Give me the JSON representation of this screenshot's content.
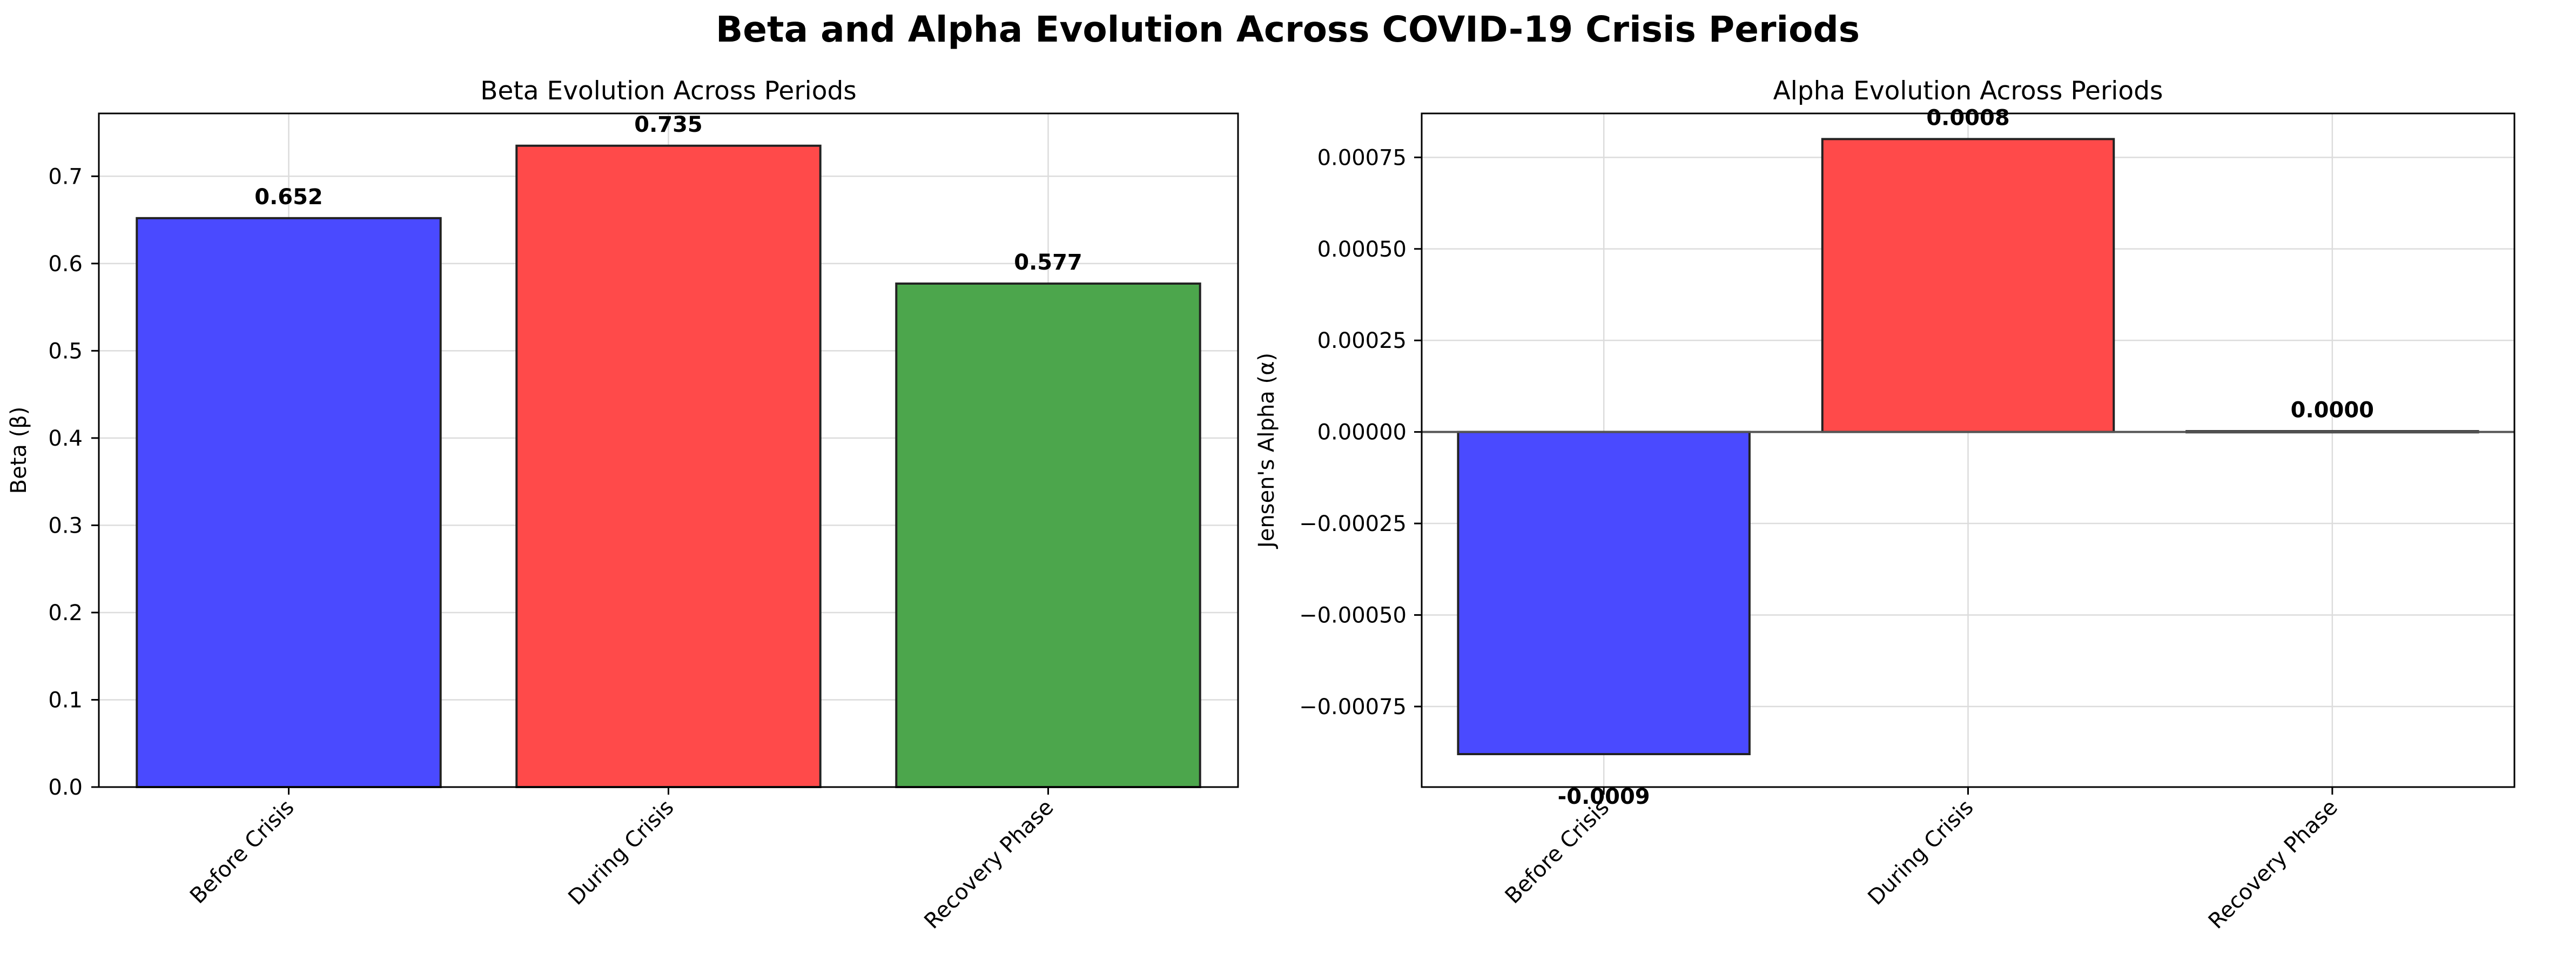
{
  "figure": {
    "suptitle": "Beta and Alpha Evolution Across COVID-19 Crisis Periods"
  },
  "chart_data": [
    {
      "type": "bar",
      "title": "Beta Evolution Across Periods",
      "xlabel": "",
      "ylabel": "Beta (β)",
      "categories": [
        "Before Crisis",
        "During Crisis",
        "Recovery Phase"
      ],
      "values": [
        0.652,
        0.735,
        0.577
      ],
      "value_labels": [
        "0.652",
        "0.735",
        "0.577"
      ],
      "bar_colors": [
        "#4a4aff",
        "#ff4a4a",
        "#4ca64c"
      ],
      "ylim": [
        0,
        0.772
      ],
      "yticks": [
        0.0,
        0.1,
        0.2,
        0.3,
        0.4,
        0.5,
        0.6,
        0.7
      ],
      "ytick_labels": [
        "0.0",
        "0.1",
        "0.2",
        "0.3",
        "0.4",
        "0.5",
        "0.6",
        "0.7"
      ],
      "grid": true,
      "zero_line": false
    },
    {
      "type": "bar",
      "title": "Alpha Evolution Across Periods",
      "xlabel": "",
      "ylabel": "Jensen's Alpha (α)",
      "categories": [
        "Before Crisis",
        "During Crisis",
        "Recovery Phase"
      ],
      "values": [
        -0.00088,
        0.0008,
        2e-06
      ],
      "value_labels": [
        "-0.0009",
        "0.0008",
        "0.0000"
      ],
      "bar_colors": [
        "#4a4aff",
        "#ff4a4a",
        "#4ca64c"
      ],
      "ylim": [
        -0.00097,
        0.00087
      ],
      "yticks": [
        -0.00075,
        -0.0005,
        -0.00025,
        0.0,
        0.00025,
        0.0005,
        0.00075
      ],
      "ytick_labels": [
        "−0.00075",
        "−0.00050",
        "−0.00025",
        "0.00000",
        "0.00025",
        "0.00050",
        "0.00075"
      ],
      "grid": true,
      "zero_line": true
    }
  ]
}
